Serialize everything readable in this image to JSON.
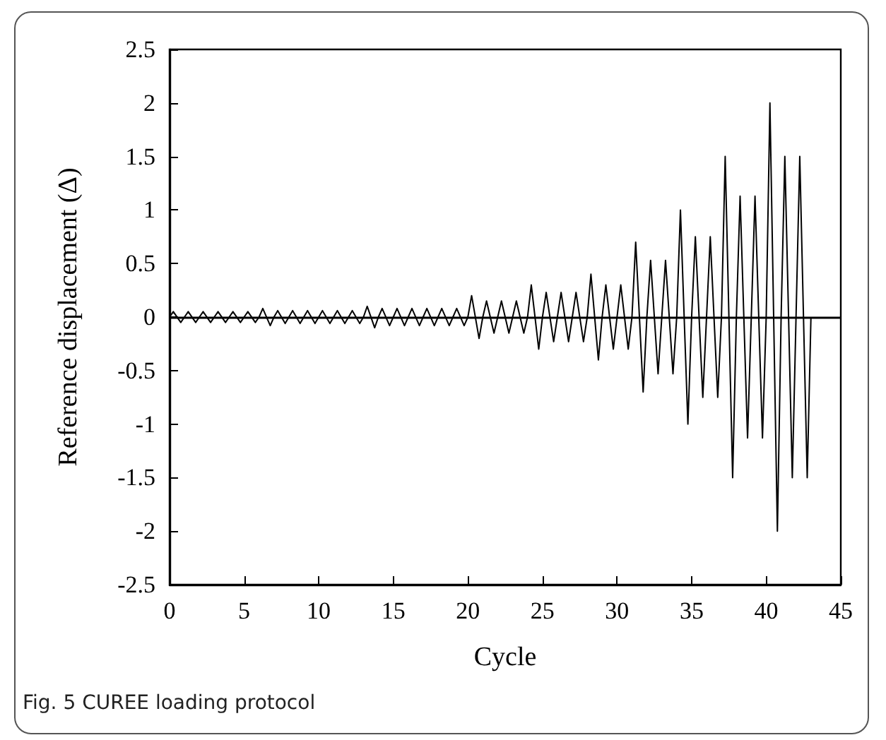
{
  "chart_data": {
    "type": "line",
    "xlabel": "Cycle",
    "ylabel": "Reference displacement (Δ)",
    "annotations": [
      "Fig. 5  CUREE loading protocol"
    ],
    "x": [
      0,
      0.25,
      0.75,
      1,
      1.25,
      1.75,
      2,
      2.25,
      2.75,
      3,
      3.25,
      3.75,
      4,
      4.25,
      4.75,
      5,
      5.25,
      5.75,
      6,
      6.25,
      6.75,
      7,
      7.25,
      7.75,
      8,
      8.25,
      8.75,
      9,
      9.25,
      9.75,
      10,
      10.25,
      10.75,
      11,
      11.25,
      11.75,
      12,
      12.25,
      12.75,
      13,
      13.25,
      13.75,
      14,
      14.25,
      14.75,
      15,
      15.25,
      15.75,
      16,
      16.25,
      16.75,
      17,
      17.25,
      17.75,
      18,
      18.25,
      18.75,
      19,
      19.25,
      19.75,
      20,
      20.25,
      20.75,
      21,
      21.25,
      21.75,
      22,
      22.25,
      22.75,
      23,
      23.25,
      23.75,
      24,
      24.25,
      24.75,
      25,
      25.25,
      25.75,
      26,
      26.25,
      26.75,
      27,
      27.25,
      27.75,
      28,
      28.25,
      28.75,
      29,
      29.25,
      29.75,
      30,
      30.25,
      30.75,
      31,
      31.25,
      31.75,
      32,
      32.25,
      32.75,
      33,
      33.25,
      33.75,
      34,
      34.25,
      34.75,
      35,
      35.25,
      35.75,
      36,
      36.25,
      36.75,
      37,
      37.25,
      37.75,
      38,
      38.25,
      38.75,
      39,
      39.25,
      39.75,
      40,
      40.25,
      40.75,
      41,
      41.25,
      41.75,
      42,
      42.25,
      42.75,
      43
    ],
    "values": [
      0,
      0.05,
      -0.05,
      0,
      0.05,
      -0.05,
      0,
      0.05,
      -0.05,
      0,
      0.05,
      -0.05,
      0,
      0.05,
      -0.05,
      0,
      0.05,
      -0.05,
      0,
      0.08,
      -0.08,
      0,
      0.06,
      -0.06,
      0,
      0.06,
      -0.06,
      0,
      0.06,
      -0.06,
      0,
      0.06,
      -0.06,
      0,
      0.06,
      -0.06,
      0,
      0.06,
      -0.06,
      0,
      0.1,
      -0.1,
      0,
      0.08,
      -0.08,
      0,
      0.08,
      -0.08,
      0,
      0.08,
      -0.08,
      0,
      0.08,
      -0.08,
      0,
      0.08,
      -0.08,
      0,
      0.08,
      -0.08,
      0,
      0.2,
      -0.2,
      0,
      0.15,
      -0.15,
      0,
      0.15,
      -0.15,
      0,
      0.15,
      -0.15,
      0,
      0.3,
      -0.3,
      0,
      0.23,
      -0.23,
      0,
      0.23,
      -0.23,
      0,
      0.23,
      -0.23,
      0,
      0.4,
      -0.4,
      0,
      0.3,
      -0.3,
      0,
      0.3,
      -0.3,
      0,
      0.7,
      -0.7,
      0,
      0.53,
      -0.53,
      0,
      0.53,
      -0.53,
      0,
      1,
      -1,
      0,
      0.75,
      -0.75,
      0,
      0.75,
      -0.75,
      0,
      1.5,
      -1.5,
      0,
      1.13,
      -1.13,
      0,
      1.13,
      -1.13,
      0,
      2,
      -2,
      0,
      1.5,
      -1.5,
      0,
      1.5,
      -1.5,
      0
    ],
    "color": "#000000",
    "marker": "none",
    "xlim": [
      0,
      45
    ],
    "xticks": [
      0,
      5,
      10,
      15,
      20,
      25,
      30,
      35,
      40,
      45
    ],
    "ylim": [
      -2.5,
      2.5
    ],
    "yticks": [
      -2.5,
      -2,
      -1.5,
      -1,
      -0.5,
      0,
      0.5,
      1,
      1.5,
      2,
      2.5
    ],
    "ref_lines": [
      {
        "axis": "y",
        "value": 0,
        "color": "#000000"
      }
    ]
  }
}
